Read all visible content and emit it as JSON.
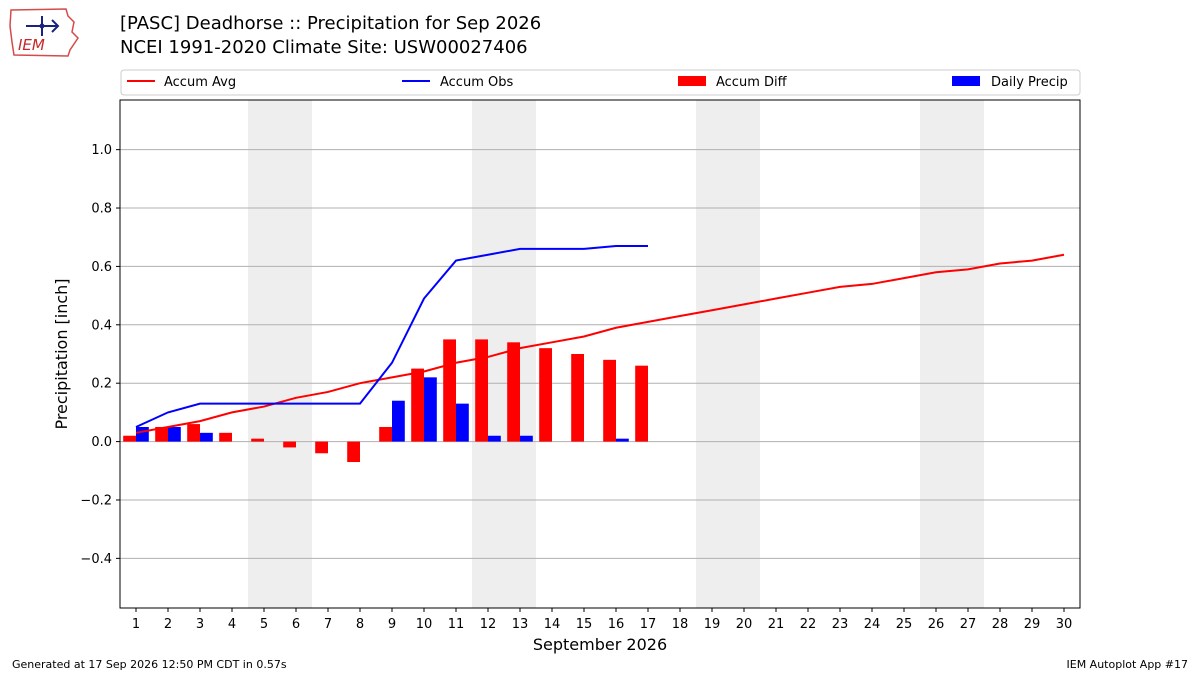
{
  "header": {
    "logo_text": "IEM",
    "title_line1": "[PASC] Deadhorse :: Precipitation for Sep 2026",
    "title_line2": "NCEI 1991-2020 Climate Site: USW00027406"
  },
  "footer": {
    "left": "Generated at 17 Sep 2026 12:50 PM CDT in 0.57s",
    "right": "IEM Autoplot App #17"
  },
  "colors": {
    "accum_avg": "#ff0000",
    "accum_obs": "#0000ff",
    "accum_diff": "#ff0000",
    "daily_precip": "#0000ff",
    "weekend_shade": "#eeeeee",
    "grid": "#b0b0b0"
  },
  "chart_data": {
    "type": "bar",
    "xlabel": "September 2026",
    "ylabel": "Precipitation [inch]",
    "xlim": [
      0.5,
      30.5
    ],
    "ylim": [
      -0.57,
      1.17
    ],
    "yticks": [
      -0.4,
      -0.2,
      0.0,
      0.2,
      0.4,
      0.6,
      0.8,
      1.0
    ],
    "ytick_labels": [
      "−0.4",
      "−0.2",
      "0.0",
      "0.2",
      "0.4",
      "0.6",
      "0.8",
      "1.0"
    ],
    "grid": true,
    "legend_placement": "top, above plot",
    "days": [
      1,
      2,
      3,
      4,
      5,
      6,
      7,
      8,
      9,
      10,
      11,
      12,
      13,
      14,
      15,
      16,
      17,
      18,
      19,
      20,
      21,
      22,
      23,
      24,
      25,
      26,
      27,
      28,
      29,
      30
    ],
    "weekend_spans": [
      [
        4.5,
        6.5
      ],
      [
        11.5,
        13.5
      ],
      [
        18.5,
        20.5
      ],
      [
        25.5,
        27.5
      ]
    ],
    "series": [
      {
        "name": "Accum Avg",
        "kind": "line",
        "x": [
          1,
          2,
          3,
          4,
          5,
          6,
          7,
          8,
          9,
          10,
          11,
          12,
          13,
          14,
          15,
          16,
          17,
          18,
          19,
          20,
          21,
          22,
          23,
          24,
          25,
          26,
          27,
          28,
          29,
          30
        ],
        "values": [
          0.03,
          0.05,
          0.07,
          0.1,
          0.12,
          0.15,
          0.17,
          0.2,
          0.22,
          0.24,
          0.27,
          0.29,
          0.32,
          0.34,
          0.36,
          0.39,
          0.41,
          0.43,
          0.45,
          0.47,
          0.49,
          0.51,
          0.53,
          0.54,
          0.56,
          0.58,
          0.59,
          0.61,
          0.62,
          0.64
        ]
      },
      {
        "name": "Accum Obs",
        "kind": "line",
        "x": [
          1,
          2,
          3,
          4,
          5,
          6,
          7,
          8,
          9,
          10,
          11,
          12,
          13,
          14,
          15,
          16,
          17
        ],
        "values": [
          0.05,
          0.1,
          0.13,
          0.13,
          0.13,
          0.13,
          0.13,
          0.13,
          0.27,
          0.49,
          0.62,
          0.64,
          0.66,
          0.66,
          0.66,
          0.67,
          0.67
        ]
      },
      {
        "name": "Accum Diff",
        "kind": "bar",
        "offset": "left",
        "x": [
          1,
          2,
          3,
          4,
          5,
          6,
          7,
          8,
          9,
          10,
          11,
          12,
          13,
          14,
          15,
          16,
          17
        ],
        "values": [
          0.02,
          0.05,
          0.06,
          0.03,
          0.01,
          -0.02,
          -0.04,
          -0.07,
          0.05,
          0.25,
          0.35,
          0.35,
          0.34,
          0.32,
          0.3,
          0.28,
          0.26
        ]
      },
      {
        "name": "Daily Precip",
        "kind": "bar",
        "offset": "right",
        "x": [
          1,
          2,
          3,
          4,
          5,
          6,
          7,
          8,
          9,
          10,
          11,
          12,
          13,
          14,
          15,
          16,
          17
        ],
        "values": [
          0.05,
          0.05,
          0.03,
          0.0,
          0.0,
          0.0,
          0.0,
          0.0,
          0.14,
          0.22,
          0.13,
          0.02,
          0.02,
          0.0,
          0.0,
          0.01,
          0.0
        ]
      }
    ]
  }
}
